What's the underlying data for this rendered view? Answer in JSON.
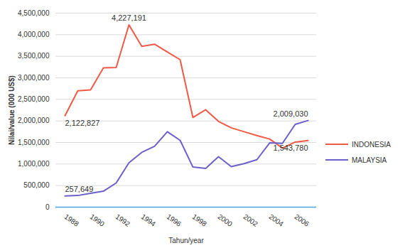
{
  "chart_data": {
    "type": "line",
    "x_label": "Tahun/year",
    "y_label": "Nilai/value (000 US$)",
    "categories": [
      "1988",
      null,
      "1990",
      null,
      "1992",
      null,
      "1994",
      null,
      "1996",
      null,
      "1998",
      null,
      "2000",
      null,
      "2002",
      null,
      "2004",
      null,
      "2006",
      null
    ],
    "series": [
      {
        "name": "INDONESIA",
        "color": "#ee5a45",
        "values": [
          2122827,
          2700000,
          2720000,
          3230000,
          3240000,
          4227191,
          3730000,
          3780000,
          3600000,
          3420000,
          2080000,
          2260000,
          1990000,
          1840000,
          1750000,
          1660000,
          1580000,
          1370000,
          1510000,
          1543780
        ],
        "value_labels": [
          "2,122,827",
          null,
          null,
          null,
          null,
          "4,227,191",
          null,
          null,
          null,
          null,
          null,
          null,
          null,
          null,
          null,
          null,
          null,
          null,
          null,
          "1,543,780"
        ]
      },
      {
        "name": "MALAYSIA",
        "color": "#6b5fc9",
        "values": [
          257649,
          270000,
          320000,
          370000,
          560000,
          1030000,
          1270000,
          1410000,
          1750000,
          1550000,
          930000,
          900000,
          1170000,
          940000,
          1010000,
          1100000,
          1490000,
          1480000,
          1920000,
          2009030
        ],
        "value_labels": [
          "257,649",
          null,
          null,
          null,
          null,
          null,
          null,
          null,
          null,
          null,
          null,
          null,
          null,
          null,
          null,
          null,
          null,
          null,
          null,
          "2,009,030"
        ]
      }
    ],
    "ylim": [
      0,
      4500000
    ],
    "yticks": [
      0,
      {
        "value": 500000,
        "label": "500,000"
      },
      {
        "value": 1000000,
        "label": "1,000,000"
      },
      {
        "value": 1500000,
        "label": "1,500,000"
      },
      {
        "value": 2000000,
        "label": "2,000,000"
      },
      {
        "value": 2500000,
        "label": "2,500,000"
      },
      {
        "value": 3000000,
        "label": "3,000,000"
      },
      {
        "value": 3500000,
        "label": "3,500,000"
      },
      {
        "value": 4000000,
        "label": "4,000,000"
      },
      {
        "value": 4500000,
        "label": "4,500,000"
      }
    ],
    "grid": true,
    "legend": "right",
    "data_labels": true
  }
}
